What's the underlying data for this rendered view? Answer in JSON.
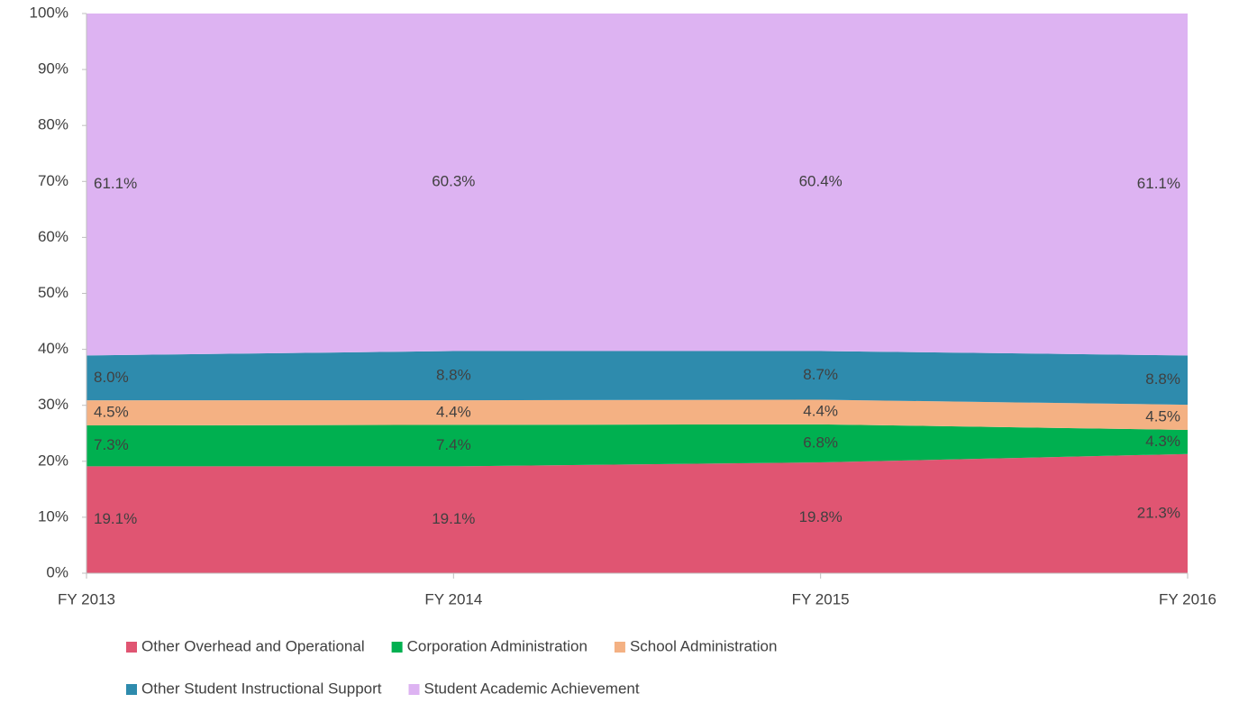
{
  "chart_data": {
    "type": "area",
    "stacked": true,
    "categories": [
      "FY 2013",
      "FY 2014",
      "FY 2015",
      "FY 2016"
    ],
    "ylim": [
      0,
      100
    ],
    "yticks": [
      {
        "value": 0,
        "label": "0%"
      },
      {
        "value": 10,
        "label": "10%"
      },
      {
        "value": 20,
        "label": "20%"
      },
      {
        "value": 30,
        "label": "30%"
      },
      {
        "value": 40,
        "label": "40%"
      },
      {
        "value": 50,
        "label": "50%"
      },
      {
        "value": 60,
        "label": "60%"
      },
      {
        "value": 70,
        "label": "70%"
      },
      {
        "value": 80,
        "label": "80%"
      },
      {
        "value": 90,
        "label": "90%"
      },
      {
        "value": 100,
        "label": "100%"
      }
    ],
    "legend": "bottom",
    "series": [
      {
        "name": "Other Overhead and Operational",
        "color": "#e05572",
        "values": [
          19.1,
          19.1,
          19.8,
          21.3
        ],
        "value_labels": [
          "19.1%",
          "19.1%",
          "19.8%",
          "21.3%"
        ]
      },
      {
        "name": "Corporation Administration",
        "color": "#00b050",
        "values": [
          7.3,
          7.4,
          6.8,
          4.3
        ],
        "value_labels": [
          "7.3%",
          "7.4%",
          "6.8%",
          "4.3%"
        ]
      },
      {
        "name": "School Administration",
        "color": "#f4b183",
        "values": [
          4.5,
          4.4,
          4.4,
          4.5
        ],
        "value_labels": [
          "4.5%",
          "4.4%",
          "4.4%",
          "4.5%"
        ]
      },
      {
        "name": "Other Student Instructional Support",
        "color": "#2e8bad",
        "values": [
          8.0,
          8.8,
          8.7,
          8.8
        ],
        "value_labels": [
          "8.0%",
          "8.8%",
          "8.7%",
          "8.8%"
        ]
      },
      {
        "name": "Student Academic Achievement",
        "color": "#ddb3f2",
        "values": [
          61.1,
          60.3,
          60.4,
          61.1
        ],
        "value_labels": [
          "61.1%",
          "60.3%",
          "60.4%",
          "61.1%"
        ]
      }
    ]
  }
}
